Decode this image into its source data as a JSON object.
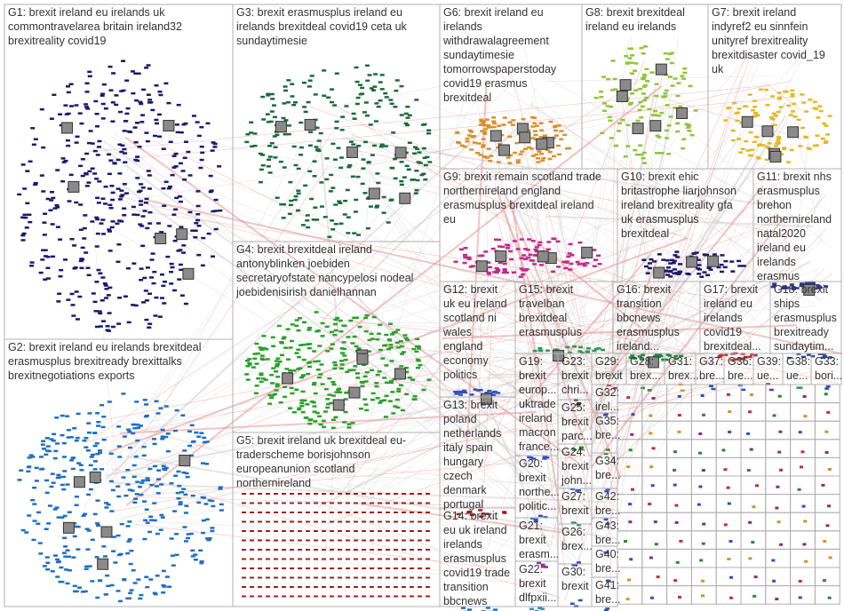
{
  "groups": [
    {
      "lines": [
        "G1: brexit ireland eu irelands uk",
        "commontravelarea britain ireland32",
        "brexitreality covid19"
      ]
    },
    {
      "lines": [
        "G2: brexit ireland eu irelands brexitdeal",
        "erasmusplus brexitready brexittalks",
        "brexitnegotiations exports"
      ]
    },
    {
      "lines": [
        "G3: brexit erasmusplus ireland eu",
        "irelands brexitdeal covid19 ceta uk",
        "sundaytimesie"
      ]
    },
    {
      "lines": [
        "G4: brexit brexitdeal ireland",
        "antonyblinken joebiden",
        "secretaryofstate nancypelosi nodeal",
        "joebidenisirish danielhannan"
      ]
    },
    {
      "lines": [
        "G5: brexit ireland uk brexitdeal eu-",
        "traderscheme borisjohnson",
        "europeanunion scotland",
        "northernireland"
      ]
    },
    {
      "lines": [
        "G6: brexit ireland eu",
        "irelands",
        "withdrawalagreement",
        "sundaytimesie",
        "tomorrowspaperstoday",
        "covid19 erasmus",
        "brexitdeal"
      ]
    },
    {
      "lines": [
        "G8: brexit brexitdeal",
        "ireland eu irelands"
      ]
    },
    {
      "lines": [
        "G7: brexit ireland",
        "indyref2 eu sinnfein",
        "unityref brexitreality",
        "brexitdisaster covid_19",
        "uk"
      ]
    },
    {
      "lines": [
        "G9: brexit remain scotland trade",
        "northernireland england",
        "erasmusplus brexitdeal ireland",
        "eu"
      ]
    },
    {
      "lines": [
        "G10: brexit ehic",
        "britastrophe liarjohnson",
        "ireland brexitreality gfa",
        "uk erasmusplus",
        "brexitdeal"
      ]
    },
    {
      "lines": [
        "G11: brexit nhs",
        "erasmusplus",
        "brehon",
        "northernireland",
        "natal2020",
        "ireland eu",
        "irelands",
        "erasmus"
      ]
    },
    {
      "lines": [
        "G12: brexit",
        "uk eu ireland",
        "scotland ni",
        "wales",
        "england",
        "economy",
        "politics"
      ]
    },
    {
      "lines": [
        "G15: brexit",
        "travelban",
        "brexitdeal",
        "erasmusplus"
      ]
    },
    {
      "lines": [
        "G16: brexit",
        "transition",
        "bbcnews",
        "erasmusplus",
        "ireland..."
      ]
    },
    {
      "lines": [
        "G17: brexit",
        "ireland eu",
        "irelands",
        "covid19",
        "brexitdeal..."
      ]
    },
    {
      "lines": [
        "G18: brexit",
        "ships",
        "erasmusplus",
        "brexitready",
        "sundaytim..."
      ]
    },
    {
      "lines": [
        "G13: brexit",
        "poland",
        "netherlands",
        "italy spain",
        "hungary",
        "czech",
        "denmark",
        "portugal"
      ]
    },
    {
      "lines": [
        "G14: brexit",
        "eu uk ireland",
        "irelands",
        "erasmusplus",
        "covid19 trade",
        "transition",
        "bbcnews"
      ]
    },
    {
      "lines": [
        "G19:",
        "brexit",
        "europ...",
        "uktrade",
        "ireland",
        "macron",
        "france..."
      ]
    },
    {
      "lines": [
        "G20:",
        "brexit",
        "northe...",
        "politic..."
      ]
    },
    {
      "lines": [
        "G21:",
        "brexit",
        "erasm..."
      ]
    },
    {
      "lines": [
        "G22:",
        "brexit",
        "dlfpxii..."
      ]
    },
    {
      "lines": [
        "G23:",
        "brexit",
        "chri..."
      ]
    },
    {
      "lines": [
        "G25:",
        "brexit",
        "parc..."
      ]
    },
    {
      "lines": [
        "G24:",
        "brexit",
        "john..."
      ]
    },
    {
      "lines": [
        "G27:",
        "brexit"
      ]
    },
    {
      "lines": [
        "G26:",
        "brex..."
      ]
    },
    {
      "lines": [
        "G30:",
        "brexit"
      ]
    },
    {
      "lines": [
        "G29:",
        "brexit"
      ]
    },
    {
      "lines": [
        "G28:",
        "brex..."
      ]
    },
    {
      "lines": [
        "G31:",
        "brex..."
      ]
    },
    {
      "lines": [
        "G37:",
        "bre..."
      ]
    },
    {
      "lines": [
        "G36:",
        "bre..."
      ]
    },
    {
      "lines": [
        "G39:",
        "ue..."
      ]
    },
    {
      "lines": [
        "G38:",
        "ue..."
      ]
    },
    {
      "lines": [
        "G33:",
        "bori..."
      ]
    },
    {
      "lines": [
        "G32:",
        "irel..."
      ]
    },
    {
      "lines": [
        "G35:",
        "bre..."
      ]
    },
    {
      "lines": [
        "G34:",
        "bre..."
      ]
    },
    {
      "lines": [
        "G42:",
        "bre..."
      ]
    },
    {
      "lines": [
        "G43:",
        "bre..."
      ]
    },
    {
      "lines": [
        "G40:",
        "bre..."
      ]
    },
    {
      "lines": [
        "G41:",
        "bre..."
      ]
    }
  ]
}
